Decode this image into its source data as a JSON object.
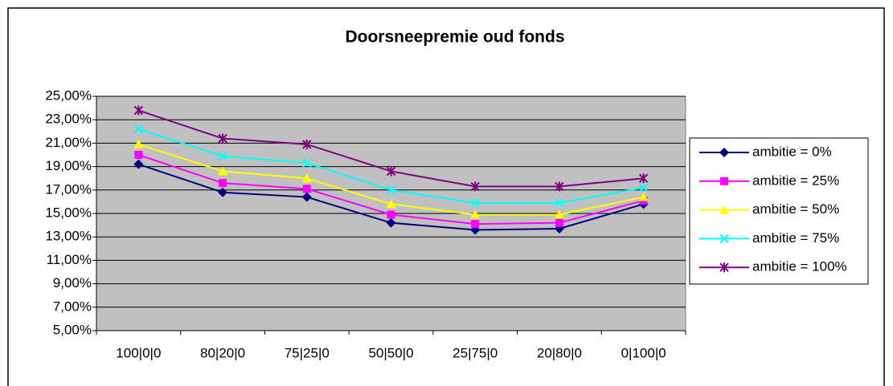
{
  "chart_data": {
    "type": "line",
    "title": "Doorsneepremie oud fonds",
    "categories": [
      "100|0|0",
      "80|20|0",
      "75|25|0",
      "50|50|0",
      "25|75|0",
      "20|80|0",
      "0|100|0"
    ],
    "series": [
      {
        "name": "ambitie = 0%",
        "color": "#000080",
        "marker": "diamond",
        "values": [
          19.2,
          16.8,
          16.4,
          14.2,
          13.6,
          13.7,
          15.8
        ]
      },
      {
        "name": "ambitie = 25%",
        "color": "#ff00ff",
        "marker": "square",
        "values": [
          20.0,
          17.6,
          17.1,
          14.9,
          14.1,
          14.2,
          16.1
        ]
      },
      {
        "name": "ambitie = 50%",
        "color": "#ffff00",
        "marker": "triangle",
        "values": [
          20.9,
          18.6,
          18.0,
          15.8,
          14.9,
          14.9,
          16.4
        ]
      },
      {
        "name": "ambitie = 75%",
        "color": "#00ffff",
        "marker": "x",
        "values": [
          22.2,
          19.9,
          19.3,
          17.0,
          15.9,
          15.9,
          17.2
        ]
      },
      {
        "name": "ambitie = 100%",
        "color": "#800080",
        "marker": "star",
        "values": [
          23.8,
          21.4,
          20.9,
          18.6,
          17.3,
          17.3,
          18.0
        ]
      }
    ],
    "ylim": [
      5,
      25
    ],
    "yticks": [
      {
        "value": 5,
        "label": "5,00%"
      },
      {
        "value": 7,
        "label": "7,00%"
      },
      {
        "value": 9,
        "label": "9,00%"
      },
      {
        "value": 11,
        "label": "11,00%"
      },
      {
        "value": 13,
        "label": "13,00%"
      },
      {
        "value": 15,
        "label": "15,00%"
      },
      {
        "value": 17,
        "label": "17,00%"
      },
      {
        "value": 19,
        "label": "19,00%"
      },
      {
        "value": 21,
        "label": "21,00%"
      },
      {
        "value": 23,
        "label": "23,00%"
      },
      {
        "value": 25,
        "label": "25,00%"
      }
    ],
    "grid": true,
    "legend": "right",
    "plot_background": "#c0c0c0"
  }
}
